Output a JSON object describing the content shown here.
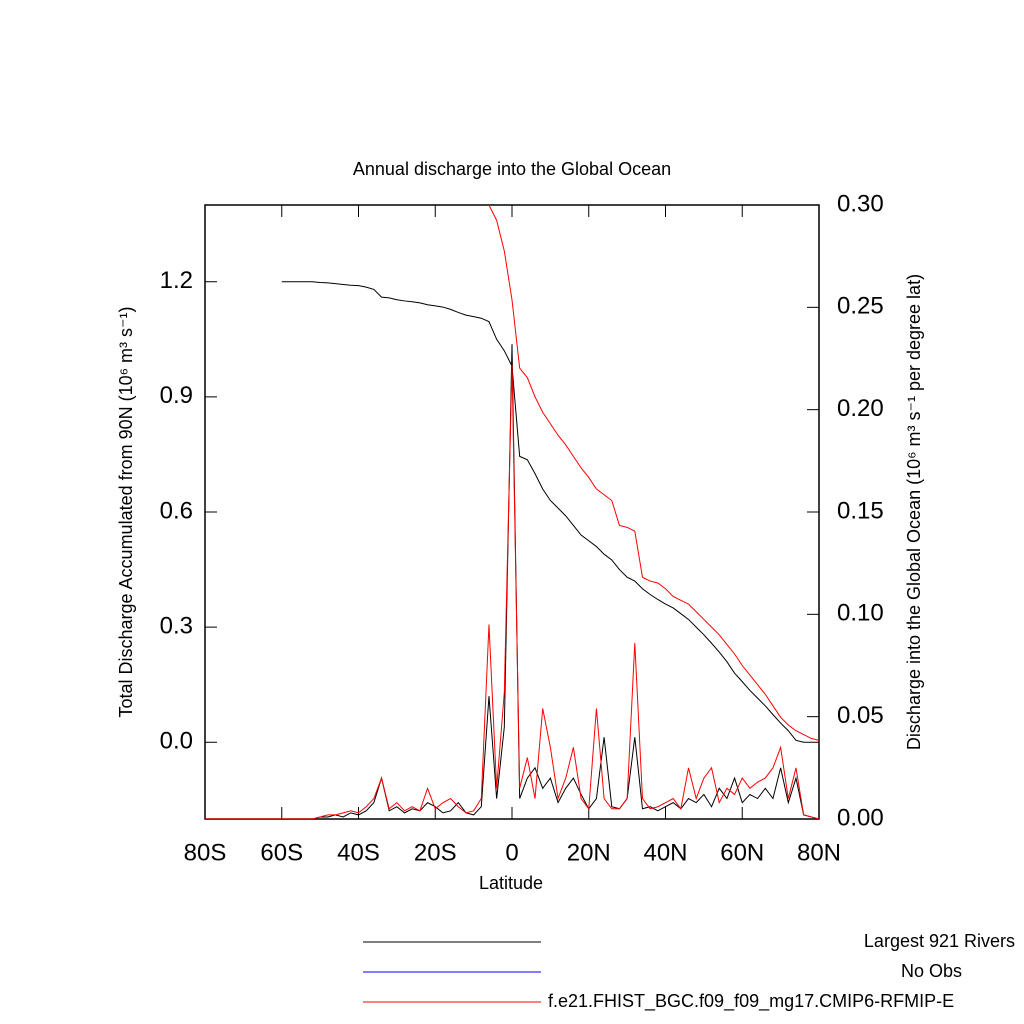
{
  "chart_data": {
    "type": "line",
    "title": "Annual discharge into the Global Ocean",
    "x_label": "Latitude",
    "y_label": "Total Discharge Accumulated from 90N (10⁶ m³ s⁻¹)",
    "y2_label": "Discharge into the Global Ocean (10⁶ m³ s⁻¹ per degree lat)",
    "x": [
      -80,
      -78,
      -76,
      -74,
      -72,
      -70,
      -68,
      -66,
      -64,
      -62,
      -60,
      -58,
      -56,
      -54,
      -52,
      -50,
      -48,
      -46,
      -44,
      -42,
      -40,
      -38,
      -36,
      -34,
      -32,
      -30,
      -28,
      -26,
      -24,
      -22,
      -20,
      -18,
      -16,
      -14,
      -12,
      -10,
      -8,
      -6,
      -4,
      -2,
      0,
      2,
      4,
      6,
      8,
      10,
      12,
      14,
      16,
      18,
      20,
      22,
      24,
      26,
      28,
      30,
      32,
      34,
      36,
      38,
      40,
      42,
      44,
      46,
      48,
      50,
      52,
      54,
      56,
      58,
      60,
      62,
      64,
      66,
      68,
      70,
      72,
      74,
      76,
      78,
      80
    ],
    "xlim": [
      -80,
      80
    ],
    "xticks": [
      {
        "value": -80,
        "label": "80S"
      },
      {
        "value": -60,
        "label": "60S"
      },
      {
        "value": -40,
        "label": "40S"
      },
      {
        "value": -20,
        "label": "20S"
      },
      0,
      {
        "value": 20,
        "label": "20N"
      },
      {
        "value": 40,
        "label": "40N"
      },
      {
        "value": 60,
        "label": "60N"
      },
      {
        "value": 80,
        "label": "80N"
      }
    ],
    "ylim": [
      -0.2,
      1.4
    ],
    "yticks": [
      {
        "value": 0,
        "label": "0.0"
      },
      0.3,
      0.6,
      0.9,
      1.2
    ],
    "y2lim": [
      0,
      0.3
    ],
    "y2ticks": [
      {
        "value": 0,
        "label": "0.00"
      },
      0.05,
      {
        "value": 0.1,
        "label": "0.10"
      },
      0.15,
      {
        "value": 0.2,
        "label": "0.20"
      },
      0.25,
      {
        "value": 0.3,
        "label": "0.30"
      }
    ],
    "series": [
      {
        "name": "Largest 921 Rivers",
        "color": "#000000",
        "values": [
          null,
          null,
          null,
          null,
          null,
          null,
          null,
          null,
          null,
          null,
          1.2,
          1.2,
          1.2,
          1.2,
          1.2,
          1.198,
          1.197,
          1.195,
          1.193,
          1.191,
          1.19,
          1.186,
          1.18,
          1.16,
          1.158,
          1.153,
          1.15,
          1.148,
          1.145,
          1.14,
          1.137,
          1.134,
          1.128,
          1.12,
          1.113,
          1.109,
          1.105,
          1.096,
          1.05,
          1.02,
          0.98,
          0.745,
          0.736,
          0.7,
          0.66,
          0.63,
          0.61,
          0.59,
          0.565,
          0.54,
          0.525,
          0.51,
          0.49,
          0.475,
          0.45,
          0.43,
          0.42,
          0.4,
          0.385,
          0.372,
          0.36,
          0.35,
          0.335,
          0.32,
          0.3,
          0.28,
          0.258,
          0.235,
          0.21,
          0.18,
          0.158,
          0.135,
          0.115,
          0.095,
          0.072,
          0.05,
          0.03,
          0.005,
          0,
          0,
          0
        ],
        "values_y2": [
          0,
          0,
          0,
          0,
          0,
          0,
          0,
          0,
          0,
          0,
          0,
          0,
          0,
          0,
          0,
          0.001,
          0.001,
          0.002,
          0.001,
          0.003,
          0.002,
          0.004,
          0.008,
          0.02,
          0.004,
          0.006,
          0.003,
          0.005,
          0.004,
          0.008,
          0.006,
          0.003,
          0.004,
          0.008,
          0.003,
          0.002,
          0.006,
          0.06,
          0.01,
          0.045,
          0.232,
          0.01,
          0.02,
          0.025,
          0.015,
          0.02,
          0.008,
          0.015,
          0.02,
          0.012,
          0.005,
          0.01,
          0.04,
          0.006,
          0.005,
          0.01,
          0.04,
          0.005,
          0.006,
          0.004,
          0.006,
          0.008,
          0.005,
          0.01,
          0.008,
          0.012,
          0.006,
          0.015,
          0.01,
          0.02,
          0.008,
          0.012,
          0.01,
          0.015,
          0.01,
          0.025,
          0.008,
          0.02,
          0.002,
          0.001,
          0
        ]
      },
      {
        "name": "No Obs",
        "color": "#0000ff"
      },
      {
        "name": "f.e21.FHIST_BGC.f09_f09_mg17.CMIP6-RFMIP-E",
        "color": "#ff0000",
        "values": [
          null,
          null,
          null,
          null,
          null,
          null,
          null,
          null,
          null,
          null,
          null,
          null,
          null,
          null,
          null,
          null,
          null,
          null,
          null,
          null,
          null,
          null,
          null,
          null,
          null,
          null,
          null,
          null,
          null,
          null,
          null,
          null,
          null,
          null,
          null,
          null,
          null,
          1.4,
          1.36,
          1.28,
          1.153,
          0.975,
          0.95,
          0.9,
          0.86,
          0.83,
          0.8,
          0.775,
          0.745,
          0.715,
          0.69,
          0.66,
          0.645,
          0.63,
          0.565,
          0.56,
          0.55,
          0.43,
          0.42,
          0.415,
          0.4,
          0.38,
          0.37,
          0.36,
          0.34,
          0.32,
          0.3,
          0.28,
          0.255,
          0.23,
          0.2,
          0.175,
          0.15,
          0.125,
          0.095,
          0.065,
          0.045,
          0.03,
          0.02,
          0.01,
          0.005
        ],
        "values_y2": [
          0,
          0,
          0,
          0,
          0,
          0,
          0,
          0,
          0,
          0,
          0,
          0,
          0,
          0,
          0,
          0.001,
          0.002,
          0.002,
          0.003,
          0.004,
          0.003,
          0.006,
          0.01,
          0.02,
          0.005,
          0.008,
          0.004,
          0.006,
          0.004,
          0.015,
          0.005,
          0.008,
          0.01,
          0.006,
          0.003,
          0.004,
          0.01,
          0.095,
          0.015,
          0.062,
          0.222,
          0.015,
          0.03,
          0.01,
          0.054,
          0.035,
          0.01,
          0.02,
          0.035,
          0.01,
          0.005,
          0.054,
          0.01,
          0.005,
          0.005,
          0.01,
          0.086,
          0.01,
          0.005,
          0.006,
          0.008,
          0.01,
          0.005,
          0.025,
          0.01,
          0.02,
          0.025,
          0.008,
          0.015,
          0.012,
          0.02,
          0.015,
          0.018,
          0.02,
          0.025,
          0.035,
          0.01,
          0.025,
          0.002,
          0.001,
          0
        ]
      }
    ]
  }
}
